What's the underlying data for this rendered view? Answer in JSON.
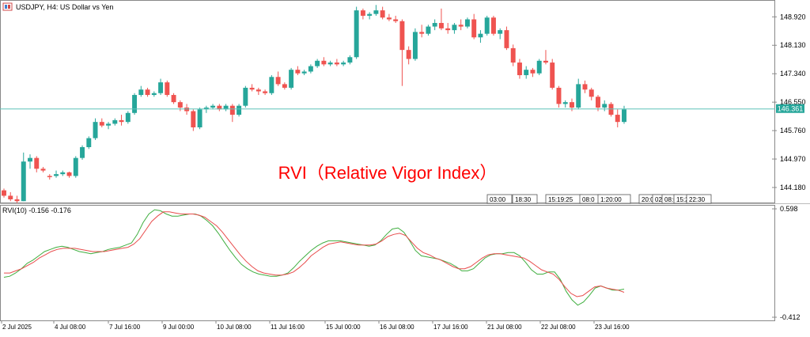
{
  "window": {
    "symbol_title": "USDJPY, H4:  US Dollar vs Yen",
    "indicator_title": "RVI(10) -0.156 -0.176",
    "overlay_title": "RVI（Relative Vigor Index）",
    "current_price": "146.361"
  },
  "colors": {
    "bull": "#26a69a",
    "bear": "#ef5350",
    "grid": "#c8c8c8",
    "axis_text": "#000000",
    "price_line": "#5fc3b9",
    "rvi_main": "#3fae3f",
    "rvi_signal": "#e84c4c",
    "overlay_text": "#ff0000",
    "price_label_bg": "#26a69a"
  },
  "icons": [
    "chart-window-icon"
  ],
  "time_axis": [
    "2 Jul 2025",
    "4 Jul 08:00",
    "7 Jul 16:00",
    "9 Jul 00:00",
    "10 Jul 08:00",
    "11 Jul 16:00",
    "15 Jul 00:00",
    "16 Jul 08:00",
    "17 Jul 16:00",
    "21 Jul 08:00",
    "22 Jul 08:00",
    "23 Jul 16:00"
  ],
  "session_labels": [
    "03:00",
    "18:30",
    "15:19:25",
    "08:0",
    "1:20:00",
    "20:0",
    "02",
    "08:0",
    "15:2",
    "22:30"
  ],
  "chart_data": [
    {
      "type": "candlestick",
      "title": "USDJPY, H4:  US Dollar vs Yen",
      "y_ticks": [
        "148.920",
        "148.130",
        "147.340",
        "146.550",
        "145.760",
        "144.970",
        "144.180"
      ],
      "ylim": [
        143.85,
        149.3
      ],
      "current_price": 146.361,
      "candles": [
        [
          144.1,
          144.15,
          143.9,
          143.95
        ],
        [
          143.95,
          144.05,
          143.8,
          143.85
        ],
        [
          143.85,
          143.95,
          143.75,
          143.8
        ],
        [
          143.8,
          145.15,
          143.8,
          144.9
        ],
        [
          144.9,
          145.1,
          144.7,
          145.0
        ],
        [
          145.0,
          145.05,
          144.6,
          144.7
        ],
        [
          144.7,
          144.75,
          144.6,
          144.65
        ],
        [
          144.5,
          144.55,
          144.4,
          144.48
        ],
        [
          144.5,
          144.65,
          144.45,
          144.55
        ],
        [
          144.55,
          144.65,
          144.5,
          144.6
        ],
        [
          144.6,
          144.62,
          144.45,
          144.5
        ],
        [
          144.5,
          145.05,
          144.45,
          145.0
        ],
        [
          145.0,
          145.35,
          144.95,
          145.3
        ],
        [
          145.3,
          145.6,
          145.25,
          145.55
        ],
        [
          145.55,
          146.1,
          145.5,
          146.0
        ],
        [
          146.0,
          146.1,
          145.85,
          145.9
        ],
        [
          145.9,
          146.0,
          145.8,
          145.95
        ],
        [
          145.95,
          146.1,
          145.9,
          146.05
        ],
        [
          146.05,
          146.2,
          145.9,
          146.0
        ],
        [
          146.0,
          146.3,
          145.95,
          146.25
        ],
        [
          146.25,
          146.8,
          146.2,
          146.75
        ],
        [
          146.75,
          147.0,
          146.7,
          146.9
        ],
        [
          146.9,
          146.95,
          146.7,
          146.75
        ],
        [
          146.75,
          146.85,
          146.7,
          146.8
        ],
        [
          146.8,
          147.2,
          146.75,
          147.1
        ],
        [
          147.1,
          147.15,
          146.7,
          146.75
        ],
        [
          146.75,
          146.8,
          146.5,
          146.55
        ],
        [
          146.55,
          146.6,
          146.3,
          146.4
        ],
        [
          146.4,
          146.5,
          146.2,
          146.3
        ],
        [
          146.3,
          146.35,
          145.75,
          145.85
        ],
        [
          145.85,
          146.4,
          145.8,
          146.35
        ],
        [
          146.35,
          146.45,
          146.25,
          146.4
        ],
        [
          146.4,
          146.5,
          146.35,
          146.45
        ],
        [
          146.45,
          146.5,
          146.3,
          146.35
        ],
        [
          146.35,
          146.5,
          146.3,
          146.45
        ],
        [
          146.45,
          146.5,
          146.0,
          146.2
        ],
        [
          146.2,
          146.5,
          146.15,
          146.45
        ],
        [
          146.45,
          147.0,
          146.4,
          146.95
        ],
        [
          146.95,
          147.05,
          146.85,
          146.9
        ],
        [
          146.9,
          146.95,
          146.75,
          146.85
        ],
        [
          146.85,
          146.9,
          146.75,
          146.8
        ],
        [
          146.8,
          147.3,
          146.75,
          147.25
        ],
        [
          147.25,
          147.4,
          147.0,
          147.05
        ],
        [
          147.05,
          147.1,
          146.9,
          146.95
        ],
        [
          146.95,
          147.5,
          146.9,
          147.45
        ],
        [
          147.45,
          147.55,
          147.3,
          147.35
        ],
        [
          147.35,
          147.45,
          147.3,
          147.4
        ],
        [
          147.4,
          147.6,
          147.35,
          147.55
        ],
        [
          147.55,
          147.75,
          147.5,
          147.7
        ],
        [
          147.7,
          147.8,
          147.55,
          147.6
        ],
        [
          147.6,
          147.7,
          147.55,
          147.65
        ],
        [
          147.65,
          147.75,
          147.55,
          147.6
        ],
        [
          147.6,
          147.7,
          147.55,
          147.65
        ],
        [
          147.65,
          147.85,
          147.6,
          147.8
        ],
        [
          147.8,
          149.2,
          147.75,
          149.1
        ],
        [
          149.1,
          149.15,
          148.85,
          148.95
        ],
        [
          148.95,
          149.05,
          148.85,
          149.0
        ],
        [
          149.0,
          149.25,
          148.95,
          149.1
        ],
        [
          149.1,
          149.2,
          148.85,
          148.9
        ],
        [
          148.9,
          149.0,
          148.8,
          148.85
        ],
        [
          148.85,
          148.95,
          148.75,
          148.8
        ],
        [
          148.8,
          148.85,
          147.0,
          148.0
        ],
        [
          148.0,
          148.1,
          147.6,
          147.75
        ],
        [
          147.75,
          148.6,
          147.7,
          148.5
        ],
        [
          148.5,
          148.7,
          148.35,
          148.45
        ],
        [
          148.45,
          148.7,
          148.4,
          148.65
        ],
        [
          148.65,
          148.85,
          148.55,
          148.75
        ],
        [
          148.75,
          149.15,
          148.55,
          148.6
        ],
        [
          148.6,
          148.75,
          148.45,
          148.55
        ],
        [
          148.55,
          148.75,
          148.45,
          148.7
        ],
        [
          148.7,
          148.85,
          148.55,
          148.65
        ],
        [
          148.65,
          148.9,
          148.6,
          148.85
        ],
        [
          148.85,
          149.0,
          148.3,
          148.35
        ],
        [
          148.35,
          148.55,
          148.2,
          148.45
        ],
        [
          148.45,
          148.95,
          148.4,
          148.9
        ],
        [
          148.9,
          148.95,
          148.4,
          148.45
        ],
        [
          148.45,
          148.6,
          148.3,
          148.55
        ],
        [
          148.55,
          148.65,
          148.0,
          148.05
        ],
        [
          148.05,
          148.15,
          147.55,
          147.65
        ],
        [
          147.65,
          147.75,
          147.2,
          147.3
        ],
        [
          147.3,
          147.55,
          147.2,
          147.45
        ],
        [
          147.45,
          147.5,
          147.25,
          147.35
        ],
        [
          147.35,
          147.75,
          147.3,
          147.7
        ],
        [
          147.7,
          148.0,
          147.6,
          147.65
        ],
        [
          147.65,
          147.75,
          146.9,
          146.95
        ],
        [
          146.95,
          147.0,
          146.4,
          146.5
        ],
        [
          146.5,
          146.6,
          146.4,
          146.55
        ],
        [
          146.55,
          146.65,
          146.3,
          146.4
        ],
        [
          146.4,
          147.2,
          146.35,
          147.05
        ],
        [
          147.05,
          147.15,
          146.8,
          146.9
        ],
        [
          146.9,
          146.95,
          146.6,
          146.7
        ],
        [
          146.7,
          146.75,
          146.3,
          146.4
        ],
        [
          146.4,
          146.6,
          146.3,
          146.5
        ],
        [
          146.5,
          146.55,
          146.15,
          146.2
        ],
        [
          146.2,
          146.35,
          145.85,
          146.0
        ],
        [
          146.0,
          146.45,
          145.95,
          146.35
        ]
      ]
    },
    {
      "type": "line",
      "title": "RVI(10) -0.156 -0.176",
      "y_ticks": [
        "0.598",
        "-0.412"
      ],
      "ylim": [
        -0.412,
        0.598
      ],
      "series": [
        {
          "values": [
            -0.04,
            -0.03,
            0.0,
            0.04,
            0.09,
            0.12,
            0.16,
            0.2,
            0.22,
            0.24,
            0.25,
            0.24,
            0.22,
            0.2,
            0.19,
            0.18,
            0.19,
            0.2,
            0.22,
            0.23,
            0.24,
            0.26,
            0.28,
            0.36,
            0.47,
            0.55,
            0.59,
            0.58,
            0.55,
            0.53,
            0.53,
            0.54,
            0.55,
            0.55,
            0.53,
            0.49,
            0.44,
            0.37,
            0.29,
            0.21,
            0.14,
            0.08,
            0.04,
            0.01,
            -0.01,
            -0.02,
            -0.03,
            -0.03,
            -0.02,
            0.0,
            0.05,
            0.11,
            0.16,
            0.21,
            0.25,
            0.28,
            0.3,
            0.3,
            0.3,
            0.29,
            0.28,
            0.27,
            0.26,
            0.25,
            0.26,
            0.3,
            0.36,
            0.41,
            0.42,
            0.38,
            0.3,
            0.21,
            0.16,
            0.15,
            0.14,
            0.13,
            0.11,
            0.09,
            0.06,
            0.02,
            0.02,
            0.04,
            0.09,
            0.14,
            0.17,
            0.18,
            0.18,
            0.19,
            0.19,
            0.16,
            0.1,
            0.03,
            -0.01,
            -0.01,
            0.01,
            0.01,
            -0.06,
            -0.17,
            -0.25,
            -0.3,
            -0.27,
            -0.21,
            -0.14,
            -0.12,
            -0.14,
            -0.16,
            -0.16,
            -0.15
          ]
        },
        {
          "values": [
            0.0,
            0.0,
            0.02,
            0.04,
            0.07,
            0.1,
            0.14,
            0.17,
            0.2,
            0.22,
            0.23,
            0.23,
            0.23,
            0.22,
            0.21,
            0.2,
            0.2,
            0.2,
            0.21,
            0.22,
            0.23,
            0.24,
            0.27,
            0.32,
            0.4,
            0.48,
            0.53,
            0.57,
            0.57,
            0.56,
            0.55,
            0.55,
            0.55,
            0.54,
            0.52,
            0.48,
            0.44,
            0.38,
            0.31,
            0.24,
            0.17,
            0.11,
            0.06,
            0.02,
            0.0,
            -0.01,
            -0.02,
            -0.02,
            -0.01,
            0.01,
            0.05,
            0.1,
            0.16,
            0.2,
            0.24,
            0.27,
            0.28,
            0.29,
            0.28,
            0.27,
            0.26,
            0.26,
            0.26,
            0.27,
            0.3,
            0.34,
            0.36,
            0.37,
            0.35,
            0.29,
            0.23,
            0.19,
            0.17,
            0.14,
            0.12,
            0.09,
            0.06,
            0.04,
            0.04,
            0.06,
            0.1,
            0.14,
            0.17,
            0.18,
            0.18,
            0.17,
            0.16,
            0.15,
            0.14,
            0.11,
            0.07,
            0.03,
            0.01,
            -0.01,
            -0.06,
            -0.13,
            -0.19,
            -0.22,
            -0.21,
            -0.17,
            -0.13,
            -0.12,
            -0.14,
            -0.15,
            -0.16,
            -0.18
          ]
        }
      ]
    }
  ]
}
